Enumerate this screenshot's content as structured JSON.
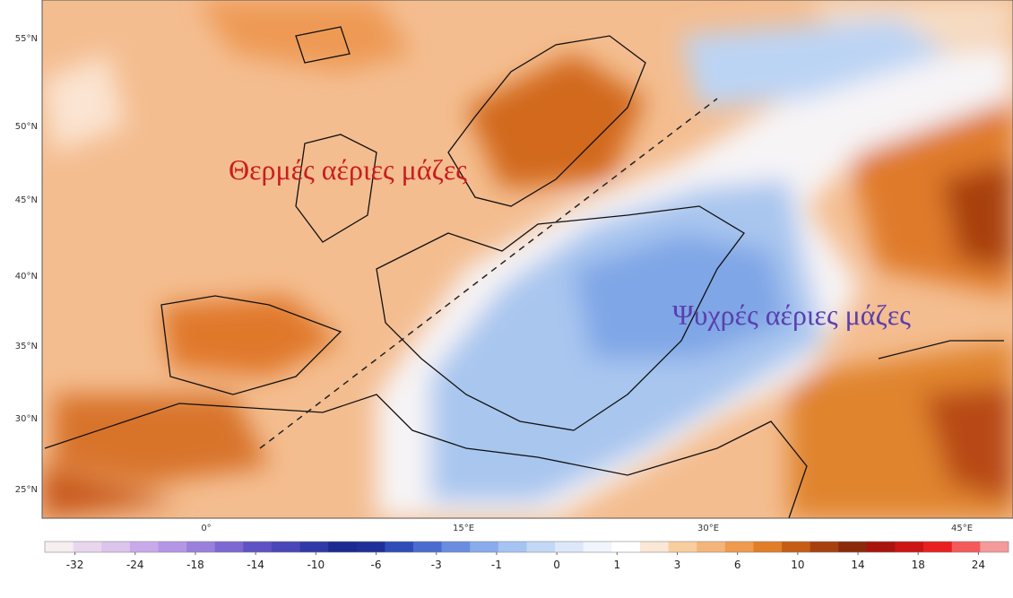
{
  "map": {
    "lat_labels": [
      "55°N",
      "50°N",
      "45°N",
      "40°N",
      "35°N",
      "30°N",
      "25°N"
    ],
    "lon_labels": [
      "0°",
      "15°E",
      "30°E",
      "45°E"
    ],
    "annotations": {
      "warm": "Θερμές αέριες μάζες",
      "cold": "Ψυχρές αέριες μάζες"
    }
  },
  "colorbar": {
    "ticks": [
      -32,
      -24,
      -18,
      -14,
      -10,
      -6,
      -3,
      -1,
      0,
      1,
      3,
      6,
      10,
      14,
      18,
      24
    ],
    "colors": [
      "#f7eef0",
      "#e9d6ee",
      "#dcc4ec",
      "#c8aaea",
      "#b596e6",
      "#9a80dc",
      "#7d68d2",
      "#5f52c4",
      "#4a47b8",
      "#2f3aa8",
      "#1a2a90",
      "#1e2f9a",
      "#2f4db8",
      "#4a6bd0",
      "#6a8de0",
      "#8aabec",
      "#a6c4f2",
      "#c2d8f6",
      "#dce8fa",
      "#f0f4fc",
      "#ffffff",
      "#fbe7d6",
      "#f8ce9f",
      "#f4b57a",
      "#ef9a4e",
      "#e27d2a",
      "#c75c14",
      "#a8400e",
      "#8a2a0a",
      "#a8140c",
      "#cc1414",
      "#e82020",
      "#f45a5a",
      "#f59a9a"
    ]
  }
}
